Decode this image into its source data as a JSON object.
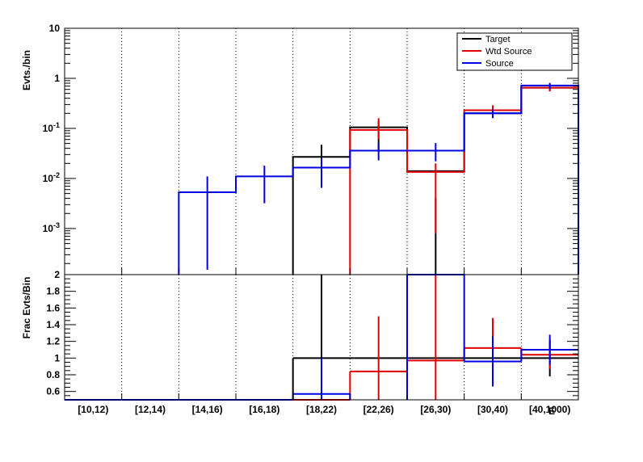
{
  "chart_data": [
    {
      "type": "histogram-log",
      "ylabel": "Evts./bin",
      "log_y": true,
      "ylim": [
        0.00012,
        10
      ],
      "y_tick_labels": [
        "10",
        "1",
        "10^-1",
        "10^-2",
        "10^-3"
      ],
      "y_tick_values": [
        10,
        1,
        0.1,
        0.01,
        0.001
      ],
      "categories": [
        "[10,12)",
        "[12,14)",
        "[14,16)",
        "[16,18)",
        "[18,22)",
        "[22,26)",
        "[26,30)",
        "[30,40)",
        "[40,1000)"
      ],
      "legend": {
        "placement": "top-right",
        "entries": [
          "Target",
          "Wtd Source",
          "Source"
        ]
      },
      "series": [
        {
          "name": "Target",
          "color": "#000000",
          "values": [
            null,
            null,
            null,
            null,
            0.027,
            0.105,
            0.014,
            0.2,
            0.65
          ],
          "err_low": [
            null,
            null,
            null,
            null,
            0.0065,
            0.035,
            5e-05,
            0.17,
            0.55
          ],
          "err_high": [
            null,
            null,
            null,
            null,
            0.047,
            0.14,
            0.004,
            0.24,
            0.77
          ]
        },
        {
          "name": "Wtd Source",
          "color": "#e00000",
          "values": [
            null,
            null,
            null,
            null,
            null,
            0.093,
            0.0135,
            0.23,
            0.65
          ],
          "err_low": [
            null,
            null,
            null,
            null,
            null,
            0.06,
            0.0008,
            0.17,
            0.55
          ],
          "err_high": [
            null,
            null,
            null,
            null,
            null,
            0.16,
            0.02,
            0.29,
            0.75
          ]
        },
        {
          "name": "Source",
          "color": "#0000e0",
          "values": [
            null,
            null,
            0.0053,
            0.011,
            0.0165,
            0.036,
            0.036,
            0.2,
            0.72
          ],
          "err_low": [
            null,
            null,
            0.00015,
            0.0032,
            0.0065,
            0.023,
            0.022,
            0.16,
            0.62
          ],
          "err_high": [
            null,
            null,
            0.011,
            0.018,
            0.025,
            0.05,
            0.051,
            0.24,
            0.81
          ]
        }
      ]
    },
    {
      "type": "histogram-ratio",
      "ylabel": "Frac Evts/Bin",
      "ylim": [
        0.5,
        2
      ],
      "y_tick_labels": [
        "0.6",
        "0.8",
        "1",
        "1.2",
        "1.4",
        "1.6",
        "1.8",
        "2"
      ],
      "y_tick_values": [
        0.6,
        0.8,
        1.0,
        1.2,
        1.4,
        1.6,
        1.8,
        2.0
      ],
      "x_tick_labels": [
        "[10,12)",
        "[12,14)",
        "[14,16)",
        "[16,18)",
        "[18,22)",
        "[22,26)",
        "[26,30)",
        "[30,40)",
        "[40,1000)"
      ],
      "xlabel": "E",
      "series": [
        {
          "name": "Target",
          "color": "#000000",
          "values": [
            null,
            null,
            null,
            null,
            1.0,
            1.0,
            1.0,
            1.0,
            1.0
          ],
          "err_low": [
            null,
            null,
            null,
            null,
            0.5,
            null,
            null,
            null,
            0.78
          ],
          "err_high": [
            null,
            null,
            null,
            null,
            2.0,
            null,
            null,
            null,
            1.22
          ]
        },
        {
          "name": "Wtd Source",
          "color": "#e00000",
          "values": [
            0.5,
            0.5,
            0.5,
            0.5,
            0.5,
            0.84,
            0.97,
            1.12,
            1.04
          ],
          "err_low": [
            null,
            null,
            null,
            null,
            null,
            0.5,
            0.5,
            0.76,
            0.87
          ],
          "err_high": [
            null,
            null,
            null,
            null,
            null,
            1.5,
            2.0,
            1.48,
            1.2
          ]
        },
        {
          "name": "Source",
          "color": "#0000e0",
          "values": [
            0.5,
            0.5,
            0.5,
            0.5,
            0.57,
            null,
            2.0,
            0.96,
            1.1
          ],
          "err_low": [
            null,
            null,
            null,
            null,
            0.5,
            null,
            null,
            0.66,
            0.92
          ],
          "err_high": [
            null,
            null,
            null,
            null,
            1.0,
            null,
            null,
            1.26,
            1.28
          ]
        }
      ]
    }
  ]
}
